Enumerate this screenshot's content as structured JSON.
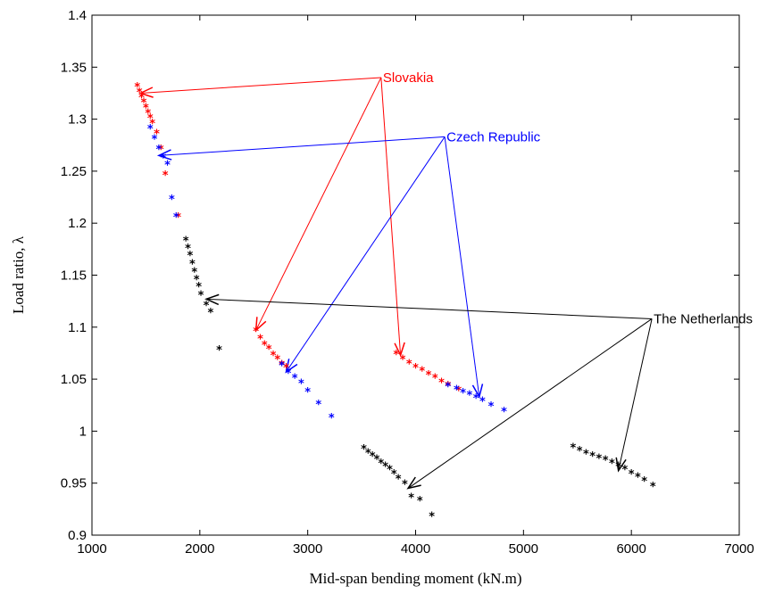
{
  "chart_data": {
    "type": "scatter",
    "title": "",
    "xlabel": "Mid-span bending moment (kN.m)",
    "ylabel": "Load ratio, λ",
    "xlim": [
      1000,
      7000
    ],
    "ylim": [
      0.9,
      1.4
    ],
    "xticks": [
      1000,
      2000,
      3000,
      4000,
      5000,
      6000,
      7000
    ],
    "yticks": [
      0.9,
      0.95,
      1,
      1.05,
      1.1,
      1.15,
      1.2,
      1.25,
      1.3,
      1.35,
      1.4
    ],
    "xtick_labels": [
      "1000",
      "2000",
      "3000",
      "4000",
      "5000",
      "6000",
      "7000"
    ],
    "ytick_labels": [
      "0.9",
      "0.95",
      "1",
      "1.05",
      "1.1",
      "1.15",
      "1.2",
      "1.25",
      "1.3",
      "1.35",
      "1.4"
    ],
    "grid": false,
    "marker": "*",
    "series": [
      {
        "name": "Slovakia",
        "color": "#ff0000",
        "clusters": [
          {
            "x": [
              1420,
              1440,
              1460,
              1480,
              1500,
              1520,
              1540,
              1560,
              1600,
              1640,
              1680,
              1800
            ],
            "y": [
              1.33,
              1.325,
              1.32,
              1.315,
              1.31,
              1.305,
              1.3,
              1.295,
              1.285,
              1.27,
              1.245,
              1.205
            ]
          },
          {
            "x": [
              2520,
              2560,
              2600,
              2640,
              2680,
              2720,
              2760,
              2800
            ],
            "y": [
              1.095,
              1.088,
              1.082,
              1.078,
              1.072,
              1.068,
              1.063,
              1.06
            ]
          },
          {
            "x": [
              3820,
              3880,
              3940,
              4000,
              4060,
              4120,
              4180,
              4240,
              4300,
              4400
            ],
            "y": [
              1.073,
              1.068,
              1.064,
              1.06,
              1.057,
              1.053,
              1.05,
              1.046,
              1.043,
              1.038
            ]
          }
        ]
      },
      {
        "name": "Czech Republic",
        "color": "#0000ff",
        "clusters": [
          {
            "x": [
              1540,
              1580,
              1620,
              1660,
              1700,
              1740,
              1780
            ],
            "y": [
              1.29,
              1.28,
              1.27,
              1.262,
              1.255,
              1.222,
              1.205
            ]
          },
          {
            "x": [
              2760,
              2820,
              2880,
              2940,
              3000,
              3100,
              3220
            ],
            "y": [
              1.062,
              1.055,
              1.05,
              1.045,
              1.037,
              1.025,
              1.012
            ]
          },
          {
            "x": [
              4300,
              4380,
              4440,
              4500,
              4560,
              4620,
              4700,
              4820
            ],
            "y": [
              1.042,
              1.039,
              1.036,
              1.034,
              1.031,
              1.028,
              1.023,
              1.018
            ]
          }
        ]
      },
      {
        "name": "The Netherlands",
        "color": "#000000",
        "clusters": [
          {
            "x": [
              1870,
              1890,
              1910,
              1930,
              1950,
              1970,
              1990,
              2010,
              2060,
              2100,
              2180
            ],
            "y": [
              1.182,
              1.175,
              1.168,
              1.16,
              1.152,
              1.145,
              1.138,
              1.13,
              1.12,
              1.113,
              1.077
            ]
          },
          {
            "x": [
              3520,
              3560,
              3600,
              3640,
              3680,
              3720,
              3760,
              3800,
              3840,
              3900,
              3960,
              4040,
              4150
            ],
            "y": [
              0.982,
              0.978,
              0.975,
              0.972,
              0.968,
              0.965,
              0.962,
              0.958,
              0.953,
              0.948,
              0.935,
              0.932,
              0.917
            ]
          },
          {
            "x": [
              5460,
              5520,
              5580,
              5640,
              5700,
              5760,
              5820,
              5880,
              5940,
              6000,
              6060,
              6120,
              6200
            ],
            "y": [
              0.983,
              0.98,
              0.977,
              0.975,
              0.973,
              0.971,
              0.968,
              0.965,
              0.962,
              0.958,
              0.955,
              0.951,
              0.946
            ]
          }
        ]
      }
    ],
    "annotations": [
      {
        "text": "Slovakia",
        "color": "#ff0000",
        "x": 3680,
        "y": 1.34,
        "targets": [
          [
            1450,
            1.325
          ],
          [
            2520,
            1.097
          ],
          [
            3860,
            1.073
          ]
        ]
      },
      {
        "text": "Czech Republic",
        "color": "#0000ff",
        "x": 4270,
        "y": 1.283,
        "targets": [
          [
            1620,
            1.265
          ],
          [
            2800,
            1.057
          ],
          [
            4590,
            1.033
          ]
        ]
      },
      {
        "text": "The Netherlands",
        "color": "#000000",
        "x": 6190,
        "y": 1.108,
        "targets": [
          [
            2060,
            1.127
          ],
          [
            3930,
            0.945
          ],
          [
            5880,
            0.962
          ]
        ]
      }
    ]
  }
}
